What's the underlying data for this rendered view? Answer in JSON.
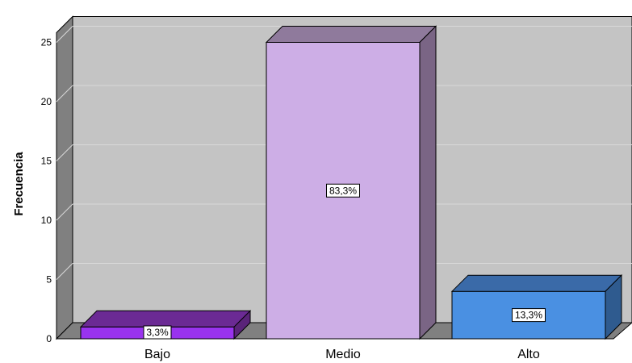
{
  "chart_data": {
    "type": "bar",
    "style": "3d",
    "categories": [
      "Bajo",
      "Medio",
      "Alto"
    ],
    "values": [
      1,
      25,
      4
    ],
    "data_labels": [
      "3,3%",
      "83,3%",
      "13,3%"
    ],
    "ylabel": "Frecuencia",
    "xlabel": "",
    "ylim": [
      0,
      25
    ],
    "yticks": [
      "0",
      "5",
      "10",
      "15",
      "20",
      "25"
    ],
    "grid": true,
    "colors": {
      "bars": [
        {
          "front": "#9933ee",
          "top": "#6b2a94",
          "side": "#5a2479"
        },
        {
          "front": "#cdaee6",
          "top": "#8f7a9c",
          "side": "#7a6585"
        },
        {
          "front": "#4a90e2",
          "top": "#3a6aa8",
          "side": "#2f5b8f"
        }
      ],
      "plot_back": "#c4c4c4",
      "plot_side": "#808080",
      "plot_floor": "#808080",
      "gridline": "#d9d9d9"
    }
  }
}
